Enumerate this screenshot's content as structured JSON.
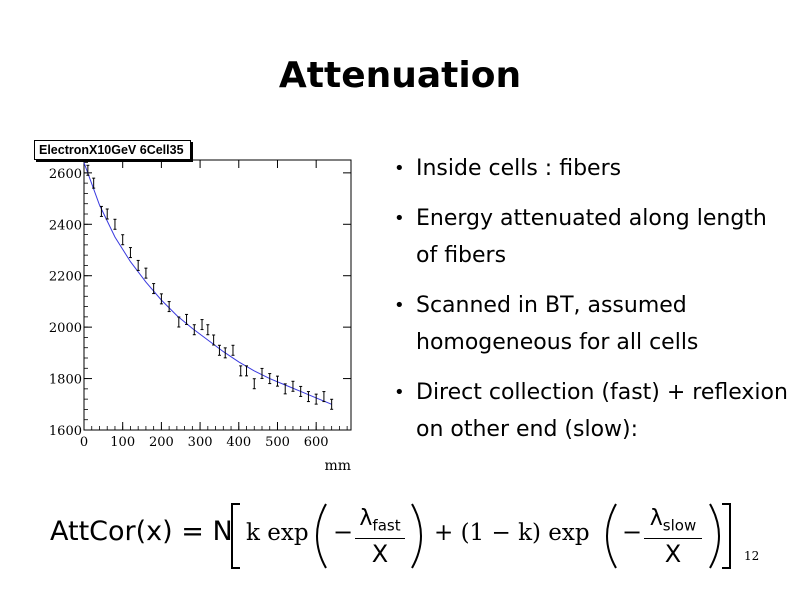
{
  "slide": {
    "title": "Attenuation",
    "page_number": "12"
  },
  "bullets": [
    {
      "text": "Inside cells : fibers"
    },
    {
      "text": "Energy attenuated along length of fibers"
    },
    {
      "text": "Scanned in BT, assumed homogeneous for all cells"
    },
    {
      "text": "Direct collection (fast) + reflexion on other end (slow):"
    }
  ],
  "formula": {
    "lhs": "AttCor(x) = N",
    "k_exp": "k exp",
    "minus": "−",
    "plus_term": "+ (1 − k) exp",
    "lambda_fast": "λ",
    "fast_sub": "fast",
    "lambda_slow": "λ",
    "slow_sub": "slow",
    "denominator": "X"
  },
  "colors": {
    "fit_line": "#3a3adf",
    "points": "#000000"
  },
  "chart_data": {
    "type": "scatter",
    "title": "ElectronX10GeV 6Cell35",
    "xlabel": "mm",
    "ylabel": "",
    "xlim": [
      0,
      690
    ],
    "ylim": [
      1600,
      2650
    ],
    "x_ticks": [
      0,
      100,
      200,
      300,
      400,
      500,
      600
    ],
    "y_ticks": [
      1600,
      1800,
      2000,
      2200,
      2400,
      2600
    ],
    "grid": false,
    "series": [
      {
        "x": [
          10,
          25,
          45,
          60,
          80,
          100,
          120,
          140,
          160,
          180,
          200,
          220,
          245,
          265,
          285,
          305,
          320,
          335,
          350,
          365,
          385,
          405,
          420,
          440,
          460,
          480,
          500,
          520,
          540,
          560,
          580,
          600,
          620,
          640
        ],
        "y": [
          2610,
          2560,
          2450,
          2440,
          2400,
          2340,
          2290,
          2240,
          2210,
          2150,
          2110,
          2080,
          2020,
          2030,
          1990,
          2010,
          1990,
          1950,
          1910,
          1900,
          1910,
          1830,
          1830,
          1780,
          1820,
          1800,
          1790,
          1760,
          1770,
          1750,
          1730,
          1720,
          1730,
          1700
        ]
      }
    ],
    "fit": {
      "x": [
        0,
        40,
        80,
        120,
        160,
        200,
        240,
        280,
        320,
        360,
        400,
        440,
        480,
        520,
        560,
        600,
        640
      ],
      "y": [
        2640,
        2475,
        2350,
        2255,
        2175,
        2105,
        2045,
        1995,
        1950,
        1905,
        1865,
        1830,
        1800,
        1775,
        1750,
        1725,
        1700
      ]
    }
  }
}
